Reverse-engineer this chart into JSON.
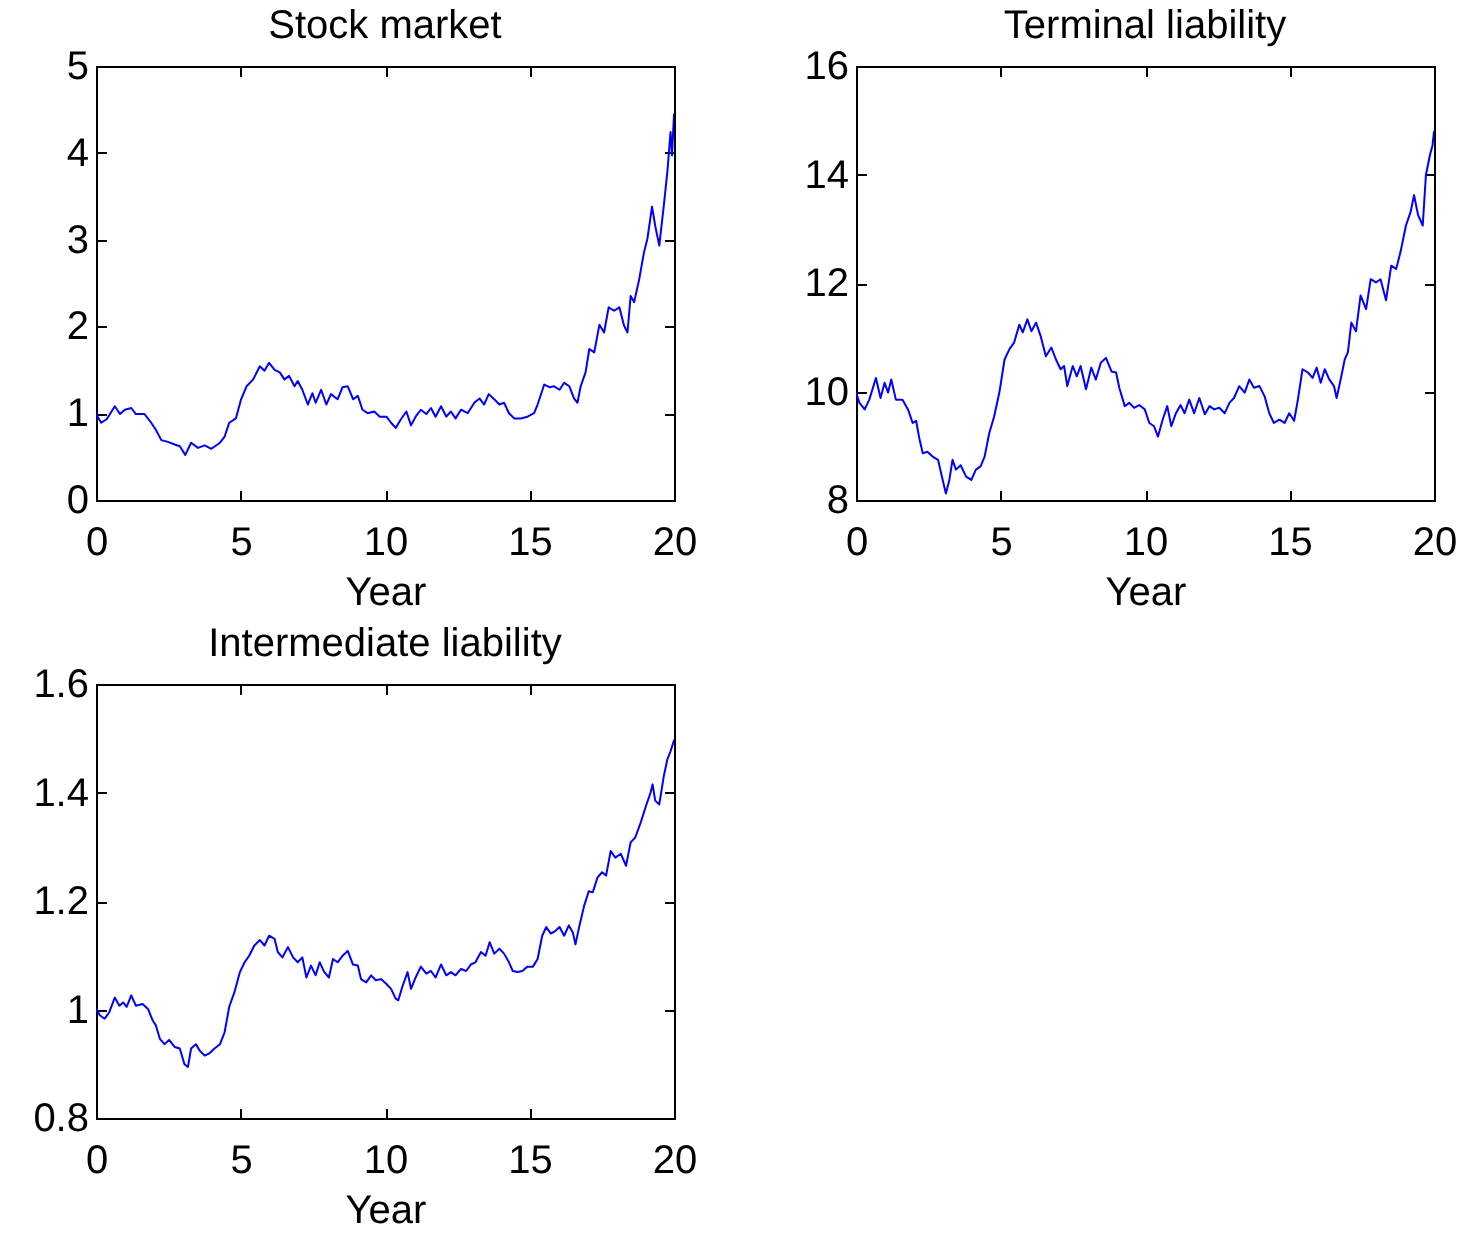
{
  "chart_data": [
    {
      "type": "line",
      "title": "Stock market",
      "xlabel": "Year",
      "color": "#0000ff",
      "xlim": [
        0,
        20
      ],
      "xticks": [
        0,
        5,
        10,
        15,
        20
      ],
      "ylim": [
        0,
        5
      ],
      "yticks": [
        0,
        1,
        2,
        3,
        4,
        5
      ],
      "x": [
        0,
        0.18,
        0.37,
        0.65,
        0.83,
        1.0,
        1.22,
        1.38,
        1.68,
        1.91,
        2.07,
        2.26,
        2.49,
        2.72,
        2.9,
        3.09,
        3.29,
        3.53,
        3.76,
        3.99,
        4.29,
        4.45,
        4.61,
        4.84,
        5.02,
        5.21,
        5.44,
        5.67,
        5.83,
        5.99,
        6.18,
        6.36,
        6.52,
        6.68,
        6.87,
        6.98,
        7.14,
        7.33,
        7.49,
        7.6,
        7.79,
        7.97,
        8.13,
        8.36,
        8.53,
        8.71,
        8.9,
        9.06,
        9.22,
        9.4,
        9.63,
        9.82,
        10.05,
        10.21,
        10.37,
        10.55,
        10.74,
        10.9,
        11.06,
        11.24,
        11.43,
        11.59,
        11.75,
        11.94,
        12.12,
        12.28,
        12.44,
        12.63,
        12.86,
        13.09,
        13.27,
        13.43,
        13.59,
        13.78,
        13.96,
        14.12,
        14.29,
        14.47,
        14.7,
        14.93,
        15.16,
        15.28,
        15.51,
        15.69,
        15.85,
        16.04,
        16.2,
        16.38,
        16.54,
        16.66,
        16.77,
        16.94,
        17.07,
        17.24,
        17.42,
        17.58,
        17.74,
        17.93,
        18.11,
        18.27,
        18.39,
        18.5,
        18.62,
        18.8,
        18.96,
        19.08,
        19.24,
        19.35,
        19.49,
        19.65,
        19.77,
        19.88,
        19.93,
        20
      ],
      "values": [
        0.99,
        0.89,
        0.93,
        1.08,
        0.99,
        1.04,
        1.06,
        0.99,
        0.99,
        0.89,
        0.81,
        0.69,
        0.67,
        0.64,
        0.62,
        0.52,
        0.66,
        0.6,
        0.63,
        0.59,
        0.66,
        0.73,
        0.89,
        0.94,
        1.16,
        1.31,
        1.39,
        1.54,
        1.49,
        1.58,
        1.5,
        1.47,
        1.39,
        1.43,
        1.31,
        1.37,
        1.27,
        1.1,
        1.23,
        1.12,
        1.27,
        1.1,
        1.22,
        1.16,
        1.3,
        1.31,
        1.16,
        1.2,
        1.04,
        1.0,
        1.02,
        0.96,
        0.96,
        0.89,
        0.83,
        0.93,
        1.02,
        0.86,
        0.96,
        1.04,
        0.99,
        1.06,
        0.96,
        1.08,
        0.96,
        1.02,
        0.94,
        1.04,
        1.0,
        1.12,
        1.17,
        1.1,
        1.22,
        1.16,
        1.1,
        1.12,
        1.0,
        0.94,
        0.94,
        0.96,
        1.0,
        1.1,
        1.33,
        1.3,
        1.31,
        1.27,
        1.35,
        1.31,
        1.17,
        1.12,
        1.31,
        1.47,
        1.74,
        1.7,
        2.02,
        1.93,
        2.22,
        2.18,
        2.22,
        2.01,
        1.93,
        2.35,
        2.28,
        2.55,
        2.85,
        3.01,
        3.38,
        3.16,
        2.93,
        3.4,
        3.78,
        4.24,
        3.97,
        4.44
      ]
    },
    {
      "type": "line",
      "title": "Terminal liability",
      "xlabel": "Year",
      "color": "#0000ff",
      "xlim": [
        0,
        20
      ],
      "xticks": [
        0,
        5,
        10,
        15,
        20
      ],
      "ylim": [
        8,
        16
      ],
      "yticks": [
        8,
        10,
        12,
        14,
        16
      ],
      "x": [
        0,
        0.12,
        0.3,
        0.46,
        0.69,
        0.85,
        0.99,
        1.11,
        1.22,
        1.38,
        1.61,
        1.8,
        1.96,
        2.08,
        2.19,
        2.31,
        2.47,
        2.65,
        2.84,
        3.0,
        3.11,
        3.23,
        3.34,
        3.46,
        3.62,
        3.81,
        3.99,
        4.15,
        4.31,
        4.45,
        4.61,
        4.78,
        4.96,
        5.14,
        5.31,
        5.47,
        5.65,
        5.77,
        5.93,
        6.07,
        6.23,
        6.39,
        6.57,
        6.76,
        6.92,
        7.08,
        7.2,
        7.31,
        7.5,
        7.64,
        7.77,
        7.96,
        8.14,
        8.3,
        8.47,
        8.65,
        8.84,
        9.0,
        9.11,
        9.3,
        9.46,
        9.62,
        9.8,
        9.99,
        10.15,
        10.31,
        10.45,
        10.61,
        10.77,
        10.91,
        11.07,
        11.23,
        11.37,
        11.53,
        11.7,
        11.88,
        12.07,
        12.23,
        12.39,
        12.57,
        12.76,
        12.92,
        13.08,
        13.26,
        13.45,
        13.61,
        13.77,
        13.96,
        14.14,
        14.3,
        14.46,
        14.65,
        14.83,
        14.99,
        15.16,
        15.29,
        15.45,
        15.64,
        15.8,
        15.94,
        16.08,
        16.22,
        16.38,
        16.54,
        16.63,
        16.77,
        16.91,
        17.02,
        17.14,
        17.3,
        17.46,
        17.65,
        17.81,
        17.99,
        18.15,
        18.34,
        18.52,
        18.69,
        18.84,
        19.03,
        19.19,
        19.31,
        19.45,
        19.61,
        19.72,
        19.86,
        19.95,
        20
      ],
      "values": [
        9.98,
        9.79,
        9.67,
        9.85,
        10.25,
        9.88,
        10.16,
        9.98,
        10.22,
        9.85,
        9.85,
        9.67,
        9.42,
        9.46,
        9.14,
        8.86,
        8.89,
        8.8,
        8.74,
        8.37,
        8.12,
        8.37,
        8.74,
        8.56,
        8.64,
        8.43,
        8.37,
        8.56,
        8.62,
        8.8,
        9.23,
        9.54,
        9.98,
        10.59,
        10.78,
        10.9,
        11.23,
        11.09,
        11.33,
        11.11,
        11.27,
        11.02,
        10.65,
        10.81,
        10.59,
        10.41,
        10.47,
        10.1,
        10.47,
        10.28,
        10.47,
        10.04,
        10.44,
        10.22,
        10.53,
        10.62,
        10.37,
        10.35,
        10.07,
        9.73,
        9.79,
        9.7,
        9.75,
        9.67,
        9.42,
        9.36,
        9.17,
        9.48,
        9.73,
        9.36,
        9.6,
        9.75,
        9.6,
        9.85,
        9.6,
        9.88,
        9.58,
        9.73,
        9.67,
        9.7,
        9.6,
        9.79,
        9.88,
        10.1,
        9.98,
        10.22,
        10.07,
        10.1,
        9.91,
        9.6,
        9.42,
        9.48,
        9.42,
        9.6,
        9.46,
        9.85,
        10.41,
        10.35,
        10.25,
        10.44,
        10.16,
        10.41,
        10.22,
        10.1,
        9.88,
        10.22,
        10.59,
        10.72,
        11.27,
        11.11,
        11.77,
        11.52,
        12.07,
        12.01,
        12.07,
        11.68,
        12.32,
        12.26,
        12.57,
        13.06,
        13.31,
        13.62,
        13.25,
        13.06,
        13.99,
        14.36,
        14.54,
        14.79
      ]
    },
    {
      "type": "line",
      "title": "Intermediate liability",
      "xlabel": "Year",
      "color": "#0000ff",
      "xlim": [
        0,
        20
      ],
      "xticks": [
        0,
        5,
        10,
        15,
        20
      ],
      "ylim": [
        0.8,
        1.6
      ],
      "yticks": [
        0.8,
        1,
        1.2,
        1.4,
        1.6
      ],
      "x": [
        0,
        0.14,
        0.3,
        0.46,
        0.65,
        0.81,
        0.94,
        1.06,
        1.22,
        1.38,
        1.61,
        1.8,
        1.96,
        2.07,
        2.21,
        2.37,
        2.53,
        2.72,
        2.9,
        3.06,
        3.18,
        3.29,
        3.46,
        3.59,
        3.76,
        3.92,
        4.1,
        4.29,
        4.45,
        4.61,
        4.79,
        4.98,
        5.14,
        5.3,
        5.48,
        5.67,
        5.83,
        5.99,
        6.18,
        6.29,
        6.45,
        6.64,
        6.82,
        6.98,
        7.14,
        7.28,
        7.44,
        7.6,
        7.74,
        7.9,
        8.06,
        8.2,
        8.36,
        8.53,
        8.71,
        8.89,
        9.06,
        9.17,
        9.35,
        9.52,
        9.68,
        9.86,
        10.05,
        10.21,
        10.37,
        10.46,
        10.6,
        10.78,
        10.9,
        11.06,
        11.24,
        11.43,
        11.59,
        11.75,
        11.94,
        12.12,
        12.28,
        12.44,
        12.63,
        12.81,
        12.97,
        13.13,
        13.32,
        13.48,
        13.62,
        13.78,
        13.96,
        14.12,
        14.29,
        14.42,
        14.59,
        14.75,
        14.93,
        15.12,
        15.28,
        15.44,
        15.58,
        15.74,
        15.9,
        16.04,
        16.2,
        16.36,
        16.5,
        16.59,
        16.73,
        16.89,
        17.05,
        17.19,
        17.35,
        17.51,
        17.65,
        17.81,
        17.97,
        18.16,
        18.34,
        18.5,
        18.66,
        18.85,
        19.03,
        19.19,
        19.26,
        19.35,
        19.49,
        19.65,
        19.77,
        19.88,
        20
      ],
      "values": [
        1.001,
        0.989,
        0.983,
        0.995,
        1.022,
        1.007,
        1.013,
        1.005,
        1.026,
        1.007,
        1.01,
        1.001,
        0.98,
        0.971,
        0.946,
        0.936,
        0.944,
        0.931,
        0.928,
        0.899,
        0.894,
        0.928,
        0.936,
        0.924,
        0.915,
        0.919,
        0.928,
        0.936,
        0.958,
        1.005,
        1.032,
        1.069,
        1.087,
        1.099,
        1.118,
        1.128,
        1.118,
        1.136,
        1.13,
        1.106,
        1.096,
        1.115,
        1.096,
        1.087,
        1.096,
        1.059,
        1.081,
        1.063,
        1.087,
        1.069,
        1.059,
        1.093,
        1.087,
        1.099,
        1.108,
        1.083,
        1.081,
        1.056,
        1.05,
        1.063,
        1.054,
        1.056,
        1.047,
        1.038,
        1.02,
        1.017,
        1.042,
        1.069,
        1.038,
        1.059,
        1.079,
        1.066,
        1.071,
        1.059,
        1.083,
        1.063,
        1.069,
        1.063,
        1.075,
        1.071,
        1.083,
        1.087,
        1.106,
        1.099,
        1.124,
        1.103,
        1.112,
        1.103,
        1.087,
        1.071,
        1.069,
        1.071,
        1.079,
        1.079,
        1.093,
        1.136,
        1.152,
        1.14,
        1.145,
        1.152,
        1.136,
        1.155,
        1.142,
        1.12,
        1.155,
        1.191,
        1.218,
        1.216,
        1.243,
        1.253,
        1.247,
        1.292,
        1.28,
        1.287,
        1.265,
        1.308,
        1.317,
        1.345,
        1.375,
        1.4,
        1.415,
        1.385,
        1.378,
        1.431,
        1.461,
        1.476,
        1.496
      ]
    }
  ]
}
